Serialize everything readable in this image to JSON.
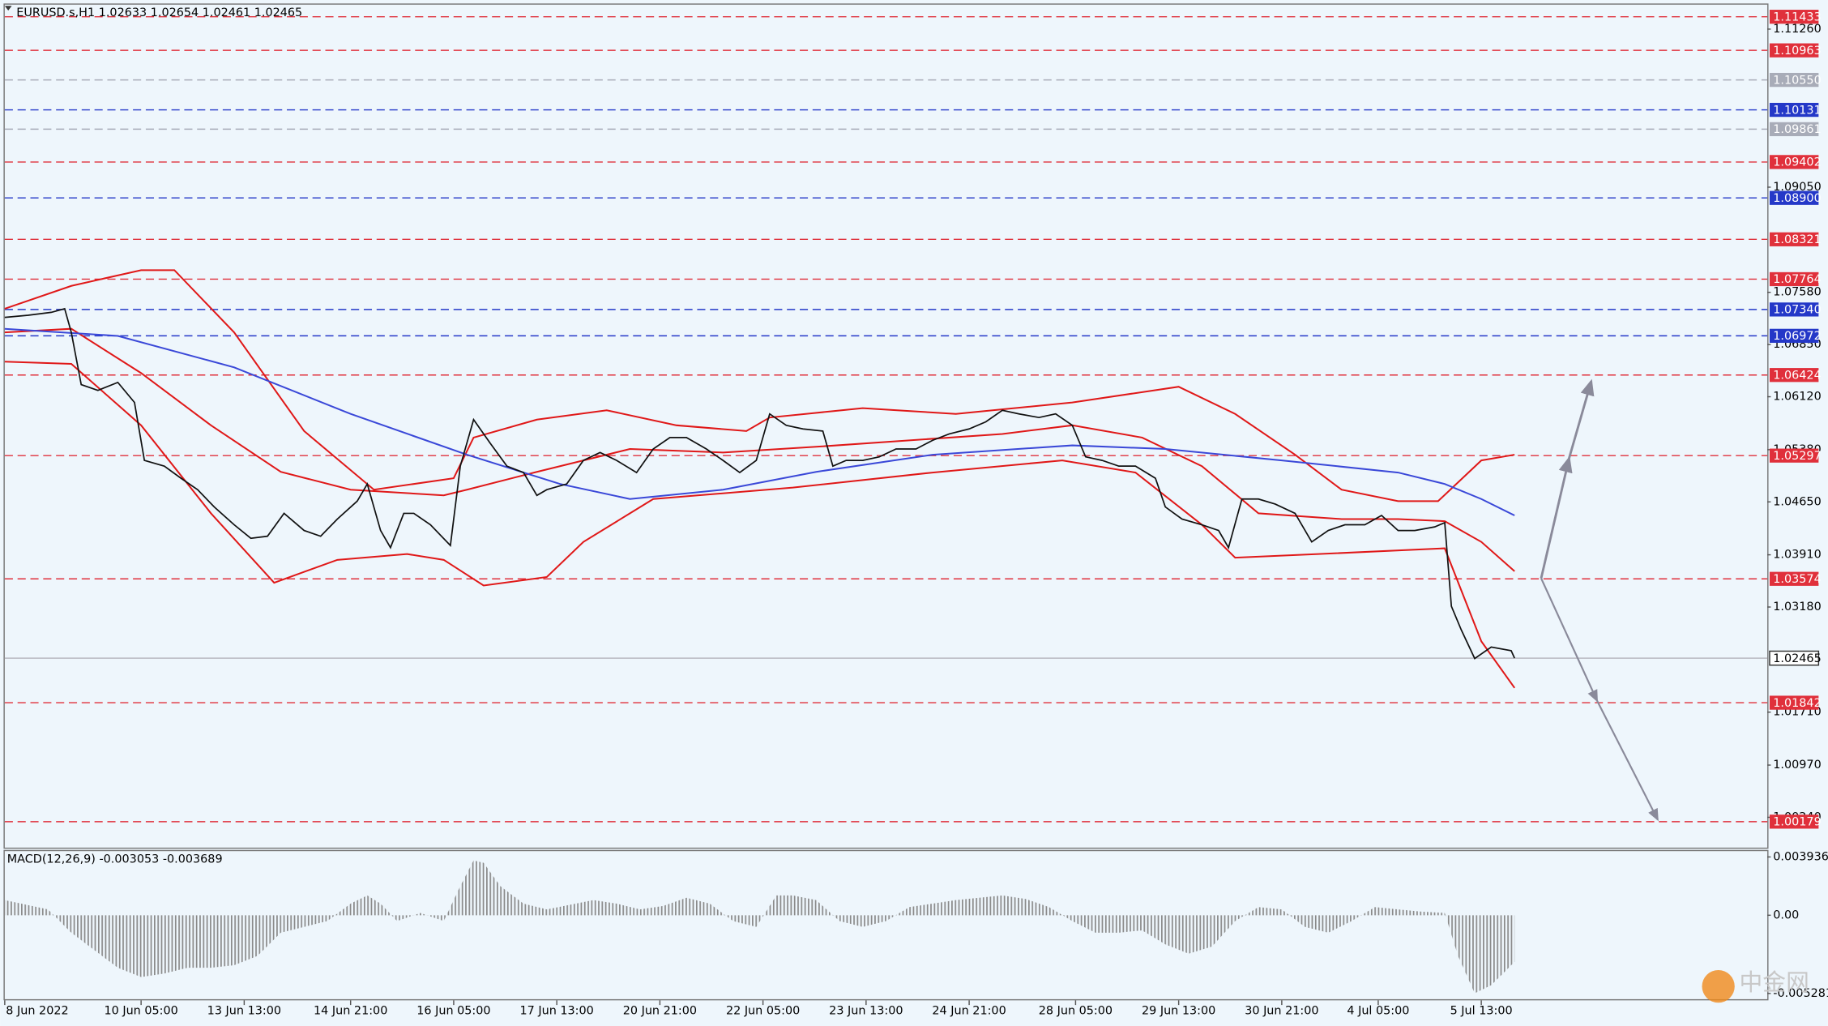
{
  "chart_data": [
    {
      "type": "line",
      "title": "EURUSD.s,H1  1.02633 1.02654 1.02461 1.02465",
      "xlim": [
        0,
        530
      ],
      "ylim": [
        0.99816,
        1.11602
      ],
      "xticks": [
        {
          "value": 0,
          "label": "8 Jun 2022"
        },
        {
          "value": 41,
          "label": "10 Jun 05:00"
        },
        {
          "value": 72,
          "label": "13 Jun 13:00"
        },
        {
          "value": 104,
          "label": "14 Jun 21:00"
        },
        {
          "value": 135,
          "label": "16 Jun 05:00"
        },
        {
          "value": 166,
          "label": "17 Jun 13:00"
        },
        {
          "value": 197,
          "label": "20 Jun 21:00"
        },
        {
          "value": 228,
          "label": "22 Jun 05:00"
        },
        {
          "value": 259,
          "label": "23 Jun 13:00"
        },
        {
          "value": 290,
          "label": "24 Jun 21:00"
        },
        {
          "value": 322,
          "label": "28 Jun 05:00"
        },
        {
          "value": 353,
          "label": "29 Jun 13:00"
        },
        {
          "value": 384,
          "label": "30 Jun 21:00"
        },
        {
          "value": 413,
          "label": "4 Jul 05:00"
        },
        {
          "value": 444,
          "label": "5 Jul 13:00"
        }
      ],
      "yticks": [
        {
          "value": 1.1126,
          "label": "1.11260"
        },
        {
          "value": 1.0905,
          "label": "1.09050"
        },
        {
          "value": 1.0758,
          "label": "1.07580"
        },
        {
          "value": 1.0685,
          "label": "1.06850"
        },
        {
          "value": 1.0612,
          "label": "1.06120"
        },
        {
          "value": 1.0538,
          "label": "1.05380"
        },
        {
          "value": 1.0465,
          "label": "1.04650"
        },
        {
          "value": 1.0391,
          "label": "1.03910"
        },
        {
          "value": 1.0318,
          "label": "1.03180"
        },
        {
          "value": 1.0171,
          "label": "1.01710"
        },
        {
          "value": 1.0097,
          "label": "1.00970"
        },
        {
          "value": 1.0024,
          "label": "1.00240"
        }
      ],
      "levels": [
        {
          "value": 1.11433,
          "color": "#e0303b",
          "style": "dashed"
        },
        {
          "value": 1.10963,
          "color": "#e0303b",
          "style": "dashed"
        },
        {
          "value": 1.1055,
          "label": "1.10550",
          "color": "#a8acb8",
          "style": "dashed"
        },
        {
          "value": 1.10131,
          "color": "#2438c8",
          "style": "dashed"
        },
        {
          "value": 1.09861,
          "color": "#a8acb8",
          "style": "dashed"
        },
        {
          "value": 1.09402,
          "color": "#e0303b",
          "style": "dashed"
        },
        {
          "value": 1.089,
          "label": "1.08900",
          "color": "#2438c8",
          "style": "dashed"
        },
        {
          "value": 1.08321,
          "color": "#e0303b",
          "style": "dashed"
        },
        {
          "value": 1.07764,
          "color": "#e0303b",
          "style": "dashed"
        },
        {
          "value": 1.0734,
          "label": "1.07340",
          "color": "#2438c8",
          "style": "dashed"
        },
        {
          "value": 1.06972,
          "color": "#2438c8",
          "style": "dashed"
        },
        {
          "value": 1.06424,
          "color": "#e0303b",
          "style": "dashed"
        },
        {
          "value": 1.05297,
          "color": "#e0303b",
          "style": "dashed"
        },
        {
          "value": 1.03574,
          "color": "#e0303b",
          "style": "dashed"
        },
        {
          "value": 1.02465,
          "color": "#b8b8c0",
          "style": "solid",
          "current": true
        },
        {
          "value": 1.01842,
          "color": "#e0303b",
          "style": "dashed"
        },
        {
          "value": 1.00179,
          "color": "#e0303b",
          "style": "dashed"
        }
      ],
      "series": [
        {
          "color": "#e01818",
          "x": [
            0,
            20,
            41,
            51,
            69,
            90,
            111,
            135,
            141,
            160,
            181,
            202,
            223,
            230,
            258,
            286,
            321,
            353,
            370,
            388,
            402,
            419,
            431,
            444,
            454
          ],
          "values": [
            1.0735,
            1.0767,
            1.0789,
            1.0789,
            1.0702,
            1.0564,
            1.0482,
            1.0498,
            1.0555,
            1.058,
            1.0593,
            1.0572,
            1.0564,
            1.0583,
            1.0596,
            1.0588,
            1.0604,
            1.0626,
            1.0588,
            1.0531,
            1.0482,
            1.0466,
            1.0466,
            1.0523,
            1.0531
          ]
        },
        {
          "color": "#e01818",
          "x": [
            0,
            20,
            41,
            62,
            83,
            104,
            132,
            139,
            160,
            188,
            216,
            244,
            272,
            300,
            321,
            342,
            360,
            377,
            402,
            419,
            433,
            444,
            454
          ],
          "values": [
            1.0702,
            1.0707,
            1.0645,
            1.0572,
            1.0507,
            1.0482,
            1.0474,
            1.0482,
            1.0507,
            1.0539,
            1.0534,
            1.0542,
            1.0551,
            1.056,
            1.0572,
            1.0555,
            1.0515,
            1.0449,
            1.0441,
            1.0441,
            1.0438,
            1.0409,
            1.0368
          ]
        },
        {
          "color": "#e01818",
          "x": [
            0,
            20,
            41,
            62,
            81,
            100,
            121,
            132,
            144,
            163,
            174,
            195,
            237,
            279,
            318,
            340,
            360,
            370,
            395,
            433,
            444,
            454
          ],
          "values": [
            1.0661,
            1.0658,
            1.0572,
            1.0449,
            1.0352,
            1.0384,
            1.0392,
            1.0384,
            1.0348,
            1.036,
            1.0409,
            1.0469,
            1.0485,
            1.0506,
            1.0523,
            1.0506,
            1.0433,
            1.0387,
            1.0392,
            1.04,
            1.027,
            1.0205
          ]
        },
        {
          "color": "#3a48d8",
          "x": [
            0,
            34,
            69,
            104,
            139,
            167,
            188,
            216,
            244,
            279,
            321,
            349,
            384,
            419,
            433,
            444,
            454
          ],
          "values": [
            1.0707,
            1.0697,
            1.0653,
            1.0588,
            1.0531,
            1.049,
            1.0469,
            1.0482,
            1.0507,
            1.0531,
            1.0544,
            1.0539,
            1.0523,
            1.0506,
            1.049,
            1.0469,
            1.0446
          ]
        },
        {
          "color": "#111111",
          "x": [
            0,
            7,
            14,
            18,
            20,
            23,
            28,
            34,
            39,
            42,
            48,
            53,
            58,
            63,
            69,
            74,
            79,
            84,
            90,
            95,
            100,
            106,
            109,
            113,
            116,
            120,
            123,
            128,
            134,
            137,
            141,
            146,
            151,
            156,
            160,
            163,
            169,
            174,
            179,
            184,
            190,
            195,
            200,
            205,
            211,
            216,
            221,
            226,
            230,
            235,
            240,
            246,
            249,
            253,
            258,
            263,
            268,
            274,
            279,
            284,
            290,
            295,
            300,
            305,
            311,
            316,
            321,
            325,
            330,
            335,
            340,
            346,
            349,
            354,
            360,
            365,
            368,
            372,
            377,
            382,
            388,
            393,
            398,
            403,
            409,
            414,
            419,
            424,
            430,
            433,
            435,
            438,
            442,
            447,
            453,
            454
          ],
          "values": [
            1.0723,
            1.0726,
            1.073,
            1.0735,
            1.0702,
            1.0629,
            1.0621,
            1.0632,
            1.0604,
            1.0523,
            1.0515,
            1.0498,
            1.0482,
            1.0458,
            1.0433,
            1.0414,
            1.0417,
            1.0449,
            1.0425,
            1.0417,
            1.0441,
            1.0466,
            1.049,
            1.0425,
            1.0401,
            1.0449,
            1.0449,
            1.0433,
            1.0404,
            1.0515,
            1.058,
            1.0547,
            1.0515,
            1.0506,
            1.0474,
            1.0482,
            1.049,
            1.0523,
            1.0534,
            1.0523,
            1.0506,
            1.0539,
            1.0555,
            1.0555,
            1.0539,
            1.0523,
            1.0506,
            1.0523,
            1.0588,
            1.0572,
            1.0567,
            1.0564,
            1.0515,
            1.0523,
            1.0523,
            1.0528,
            1.0539,
            1.0539,
            1.0551,
            1.056,
            1.0567,
            1.0577,
            1.0593,
            1.0588,
            1.0583,
            1.0588,
            1.0572,
            1.0528,
            1.0523,
            1.0515,
            1.0515,
            1.0498,
            1.0458,
            1.0441,
            1.0433,
            1.0425,
            1.0401,
            1.0469,
            1.0469,
            1.0462,
            1.0449,
            1.0409,
            1.0425,
            1.0433,
            1.0433,
            1.0446,
            1.0425,
            1.0425,
            1.043,
            1.0436,
            1.0319,
            1.0286,
            1.0246,
            1.0262,
            1.0257,
            1.02465
          ]
        }
      ]
    },
    {
      "type": "area",
      "title": "MACD(12,26,9) -0.003053 -0.003689",
      "ylim": [
        -0.005747,
        0.004487
      ],
      "yticks": [
        0.003936,
        {
          "value": 0,
          "label": "0.00"
        },
        -0.005281
      ],
      "color": "#8a8a8a",
      "x": [
        0,
        13,
        20,
        27,
        34,
        41,
        48,
        55,
        62,
        69,
        76,
        83,
        90,
        97,
        104,
        109,
        113,
        118,
        125,
        132,
        137,
        141,
        144,
        149,
        156,
        163,
        170,
        177,
        184,
        191,
        198,
        205,
        212,
        219,
        226,
        232,
        237,
        244,
        251,
        258,
        265,
        272,
        279,
        286,
        293,
        300,
        307,
        314,
        321,
        328,
        335,
        342,
        349,
        356,
        363,
        370,
        377,
        384,
        391,
        398,
        405,
        412,
        419,
        426,
        433,
        437,
        442,
        447,
        454
      ],
      "values": [
        0.00102,
        0.00039,
        -0.00118,
        -0.00236,
        -0.00354,
        -0.00417,
        -0.00394,
        -0.00354,
        -0.00354,
        -0.00338,
        -0.00275,
        -0.00118,
        -0.00079,
        -0.00039,
        0.00079,
        0.00134,
        0.00079,
        -0.00039,
        0.00016,
        -0.00039,
        0.00197,
        0.0037,
        0.00354,
        0.00197,
        0.00079,
        0.00039,
        0.00071,
        0.00102,
        0.00079,
        0.00039,
        0.00063,
        0.00118,
        0.00079,
        -0.00039,
        -0.00079,
        0.00134,
        0.00134,
        0.00102,
        -0.00039,
        -0.00079,
        -0.00039,
        0.00055,
        0.00079,
        0.00102,
        0.00118,
        0.00134,
        0.0011,
        0.00055,
        -0.00039,
        -0.00118,
        -0.00118,
        -0.00102,
        -0.00197,
        -0.0026,
        -0.00212,
        -0.00039,
        0.00055,
        0.00039,
        -0.00079,
        -0.00118,
        -0.00039,
        0.00055,
        0.00039,
        0.00024,
        0.00016,
        -0.00275,
        -0.00527,
        -0.00472,
        -0.00315
      ]
    }
  ],
  "watermark": "中金网"
}
